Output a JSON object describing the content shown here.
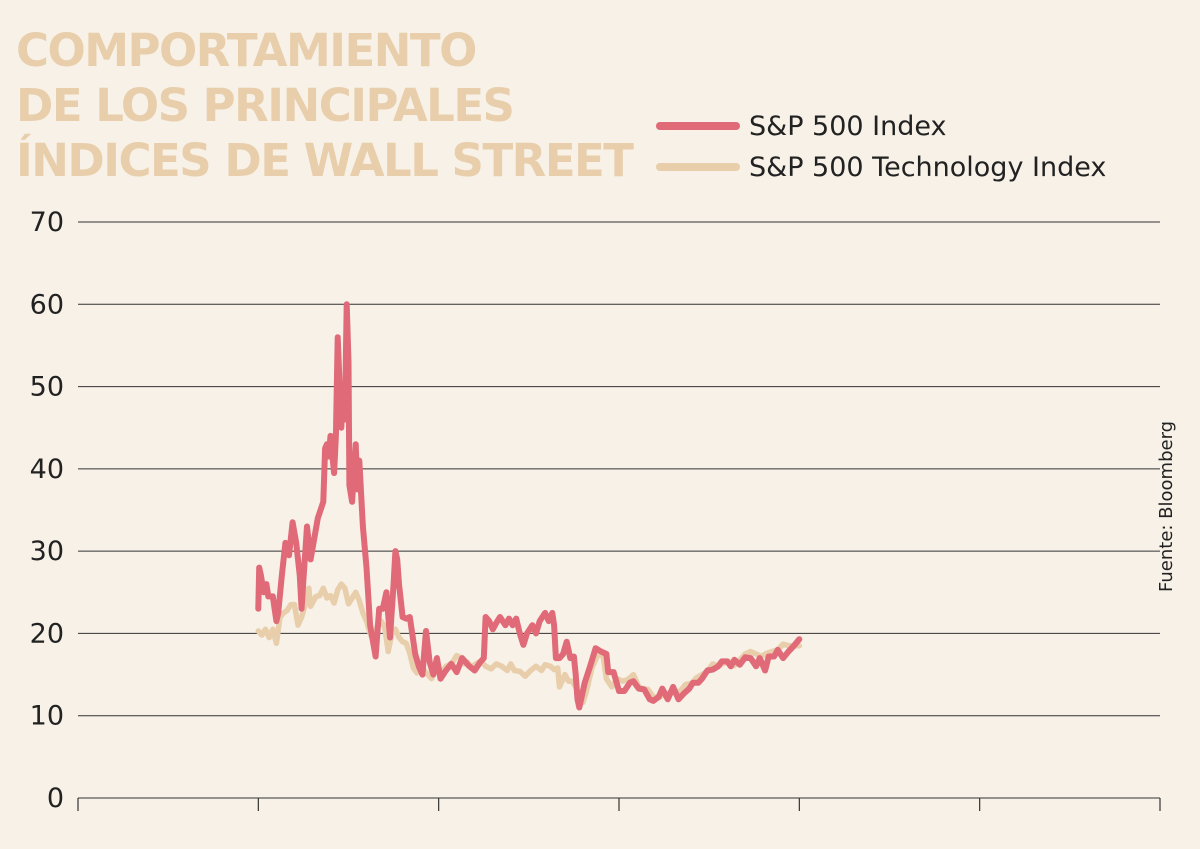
{
  "title_lines": [
    "COMPORTAMIENTO",
    "DE LOS PRINCIPALES",
    "ÍNDICES DE WALL STREET"
  ],
  "source": "Fuente: Bloomberg",
  "colors": {
    "background": "#f7f1e7",
    "title": "#e8ceaa",
    "sp500": "#e06a78",
    "tech": "#e8ceaa",
    "grid": "#333333"
  },
  "chart_data": {
    "type": "line",
    "title": "COMPORTAMIENTO DE LOS PRINCIPALES ÍNDICES DE WALL STREET",
    "xlabel": "",
    "ylabel": "",
    "ylim": [
      0,
      70
    ],
    "yticks": [
      0,
      10,
      20,
      30,
      40,
      50,
      60,
      70
    ],
    "y_tick_labels": [
      "0",
      "10",
      "20",
      "30",
      "40",
      "50",
      "60",
      "70"
    ],
    "xlim": [
      0,
      600
    ],
    "x_ticks": [
      0,
      100,
      200,
      300,
      400,
      500,
      600
    ],
    "x_tick_labels": [
      "",
      "",
      "",
      "",
      "",
      "",
      ""
    ],
    "grid": true,
    "legend_position": "top-right",
    "series": [
      {
        "name": "S&P 500 Index",
        "color": "#e06a78",
        "points": [
          [
            100,
            23
          ],
          [
            100.5,
            28
          ],
          [
            101.5,
            27
          ],
          [
            103,
            25
          ],
          [
            104.5,
            26
          ],
          [
            105.5,
            24.5
          ],
          [
            108,
            24.5
          ],
          [
            110,
            21.5
          ],
          [
            111,
            22.5
          ],
          [
            113,
            27
          ],
          [
            115,
            31
          ],
          [
            117,
            29.5
          ],
          [
            119,
            33.5
          ],
          [
            121,
            31
          ],
          [
            123,
            27
          ],
          [
            124,
            23
          ],
          [
            125,
            26.5
          ],
          [
            127,
            33
          ],
          [
            129,
            29
          ],
          [
            131,
            31.5
          ],
          [
            133,
            34
          ],
          [
            136,
            36
          ],
          [
            137,
            42.5
          ],
          [
            138,
            43
          ],
          [
            139,
            41.5
          ],
          [
            140,
            44
          ],
          [
            142,
            39.5
          ],
          [
            143,
            44
          ],
          [
            144,
            56
          ],
          [
            145,
            50.5
          ],
          [
            146,
            45
          ],
          [
            147,
            50
          ],
          [
            148,
            46
          ],
          [
            149,
            60
          ],
          [
            150,
            53
          ],
          [
            150.5,
            38
          ],
          [
            152,
            36
          ],
          [
            154,
            43
          ],
          [
            155,
            37.5
          ],
          [
            156,
            41
          ],
          [
            158,
            33
          ],
          [
            160,
            28
          ],
          [
            162,
            21
          ],
          [
            165,
            17.2
          ],
          [
            167,
            23
          ],
          [
            169,
            23
          ],
          [
            171,
            25
          ],
          [
            173,
            19.5
          ],
          [
            175,
            26
          ],
          [
            176,
            30
          ],
          [
            177,
            29
          ],
          [
            178,
            26
          ],
          [
            180,
            22
          ],
          [
            182,
            21.8
          ],
          [
            184,
            22
          ],
          [
            187,
            17.5
          ],
          [
            189,
            16
          ],
          [
            191,
            15
          ],
          [
            193,
            20.3
          ],
          [
            195,
            16.5
          ],
          [
            197,
            15
          ],
          [
            199,
            17
          ],
          [
            201,
            14.5
          ],
          [
            204,
            15.5
          ],
          [
            207,
            16.3
          ],
          [
            210,
            15.3
          ],
          [
            213,
            17
          ],
          [
            217,
            16
          ],
          [
            220,
            15.5
          ],
          [
            223,
            16.5
          ],
          [
            225,
            17
          ],
          [
            226,
            22
          ],
          [
            228,
            21.5
          ],
          [
            230,
            20.5
          ],
          [
            232,
            21.3
          ],
          [
            234,
            22
          ],
          [
            237,
            21
          ],
          [
            239,
            21.8
          ],
          [
            241,
            21
          ],
          [
            243,
            21.8
          ],
          [
            245,
            20
          ],
          [
            247,
            18.6
          ],
          [
            249,
            20
          ],
          [
            252,
            21
          ],
          [
            254,
            20
          ],
          [
            256,
            21.5
          ],
          [
            259,
            22.5
          ],
          [
            261,
            21.5
          ],
          [
            263,
            22.5
          ],
          [
            264,
            21
          ],
          [
            265,
            17
          ],
          [
            267,
            17
          ],
          [
            269,
            17.5
          ],
          [
            271,
            19
          ],
          [
            273,
            17
          ],
          [
            275,
            17.2
          ],
          [
            276,
            15
          ],
          [
            277,
            12
          ],
          [
            278,
            11
          ],
          [
            281,
            14
          ],
          [
            284,
            16
          ],
          [
            287,
            18.2
          ],
          [
            290,
            17.8
          ],
          [
            293,
            17.5
          ],
          [
            294,
            15.3
          ],
          [
            297,
            15.3
          ],
          [
            300,
            13
          ],
          [
            303,
            13
          ],
          [
            306,
            14
          ],
          [
            308,
            14.2
          ],
          [
            311,
            13.3
          ],
          [
            314,
            13.2
          ],
          [
            317,
            12
          ],
          [
            319,
            11.8
          ],
          [
            322,
            12.3
          ],
          [
            324,
            13.3
          ],
          [
            327,
            12
          ],
          [
            330,
            13.5
          ],
          [
            333,
            12
          ],
          [
            336,
            12.7
          ],
          [
            339,
            13.3
          ],
          [
            341,
            14
          ],
          [
            344,
            14
          ],
          [
            346,
            14.5
          ],
          [
            349,
            15.5
          ],
          [
            352,
            15.6
          ],
          [
            355,
            16
          ],
          [
            357,
            16.6
          ],
          [
            360,
            16.6
          ],
          [
            362,
            16
          ],
          [
            364,
            16.8
          ],
          [
            367,
            16.2
          ],
          [
            370,
            17.1
          ],
          [
            373,
            17
          ],
          [
            376,
            16
          ],
          [
            378,
            17
          ],
          [
            381,
            15.5
          ],
          [
            383,
            17.2
          ],
          [
            386,
            17.2
          ],
          [
            388,
            18
          ],
          [
            391,
            17
          ],
          [
            394,
            17.8
          ],
          [
            397,
            18.5
          ],
          [
            400,
            19.3
          ]
        ]
      },
      {
        "name": "S&P 500 Technology Index",
        "color": "#e8ceaa",
        "points": [
          [
            100,
            20.3
          ],
          [
            102,
            19.8
          ],
          [
            104,
            20.5
          ],
          [
            106,
            19.5
          ],
          [
            108,
            20.5
          ],
          [
            110,
            18.8
          ],
          [
            112,
            22
          ],
          [
            114,
            22.5
          ],
          [
            116,
            22.8
          ],
          [
            118,
            23.5
          ],
          [
            120,
            23.5
          ],
          [
            122,
            21
          ],
          [
            124,
            22
          ],
          [
            126,
            23.5
          ],
          [
            128,
            25.5
          ],
          [
            129,
            23.3
          ],
          [
            132,
            24.5
          ],
          [
            134,
            24.6
          ],
          [
            136,
            25.5
          ],
          [
            138,
            24.3
          ],
          [
            140,
            24.6
          ],
          [
            142,
            23.7
          ],
          [
            144,
            25.3
          ],
          [
            146,
            26
          ],
          [
            148,
            25.5
          ],
          [
            150,
            23.6
          ],
          [
            152,
            24.3
          ],
          [
            154,
            25
          ],
          [
            156,
            24
          ],
          [
            158,
            22.5
          ],
          [
            160,
            21.5
          ],
          [
            162,
            20
          ],
          [
            164,
            19
          ],
          [
            166,
            21
          ],
          [
            168,
            21.5
          ],
          [
            170,
            20.8
          ],
          [
            172,
            17.8
          ],
          [
            174,
            20
          ],
          [
            176,
            20.5
          ],
          [
            178,
            19.5
          ],
          [
            180,
            19
          ],
          [
            182,
            18.8
          ],
          [
            184,
            17.6
          ],
          [
            186,
            15.8
          ],
          [
            188,
            15.2
          ],
          [
            190,
            16.3
          ],
          [
            192,
            15.5
          ],
          [
            194,
            15
          ],
          [
            196,
            14.5
          ],
          [
            198,
            15.8
          ],
          [
            200,
            15.5
          ],
          [
            202,
            15.4
          ],
          [
            204,
            16
          ],
          [
            206,
            16.2
          ],
          [
            208,
            16.6
          ],
          [
            210,
            17.3
          ],
          [
            212,
            17.1
          ],
          [
            214,
            16.3
          ],
          [
            216,
            16.5
          ],
          [
            218,
            15.9
          ],
          [
            220,
            16.2
          ],
          [
            222,
            16.5
          ],
          [
            224,
            16.5
          ],
          [
            226,
            16
          ],
          [
            229,
            15.7
          ],
          [
            232,
            16.3
          ],
          [
            235,
            16
          ],
          [
            238,
            15.5
          ],
          [
            240,
            16.3
          ],
          [
            242,
            15.5
          ],
          [
            245,
            15.4
          ],
          [
            248,
            14.8
          ],
          [
            251,
            15.5
          ],
          [
            254,
            16
          ],
          [
            257,
            15.5
          ],
          [
            259,
            16.2
          ],
          [
            262,
            16
          ],
          [
            264,
            15.6
          ],
          [
            266,
            15.8
          ],
          [
            267,
            13.5
          ],
          [
            268,
            14
          ],
          [
            270,
            15
          ],
          [
            272,
            14.2
          ],
          [
            274,
            14.2
          ],
          [
            276,
            13.5
          ],
          [
            278,
            12.2
          ],
          [
            280,
            11.6
          ],
          [
            282,
            13
          ],
          [
            285,
            15.8
          ],
          [
            288,
            17.3
          ],
          [
            291,
            17.5
          ],
          [
            293,
            14.5
          ],
          [
            296,
            13.5
          ],
          [
            299,
            14.5
          ],
          [
            302,
            14.2
          ],
          [
            305,
            14.4
          ],
          [
            308,
            15
          ],
          [
            311,
            13.5
          ],
          [
            314,
            13.2
          ],
          [
            316,
            13.2
          ],
          [
            319,
            12.3
          ],
          [
            322,
            12.2
          ],
          [
            325,
            12.6
          ],
          [
            328,
            12.8
          ],
          [
            331,
            12.8
          ],
          [
            334,
            13
          ],
          [
            337,
            13.8
          ],
          [
            340,
            13.9
          ],
          [
            343,
            14.6
          ],
          [
            346,
            15
          ],
          [
            349,
            15.4
          ],
          [
            352,
            16.3
          ],
          [
            355,
            16
          ],
          [
            358,
            16.4
          ],
          [
            361,
            16.6
          ],
          [
            364,
            16.1
          ],
          [
            367,
            16.8
          ],
          [
            370,
            17.5
          ],
          [
            373,
            17.8
          ],
          [
            376,
            17.5
          ],
          [
            379,
            17.2
          ],
          [
            382,
            17.6
          ],
          [
            385,
            17.8
          ],
          [
            388,
            18
          ],
          [
            391,
            18.7
          ],
          [
            394,
            18.5
          ],
          [
            397,
            18.5
          ],
          [
            400,
            18.5
          ]
        ]
      }
    ]
  }
}
